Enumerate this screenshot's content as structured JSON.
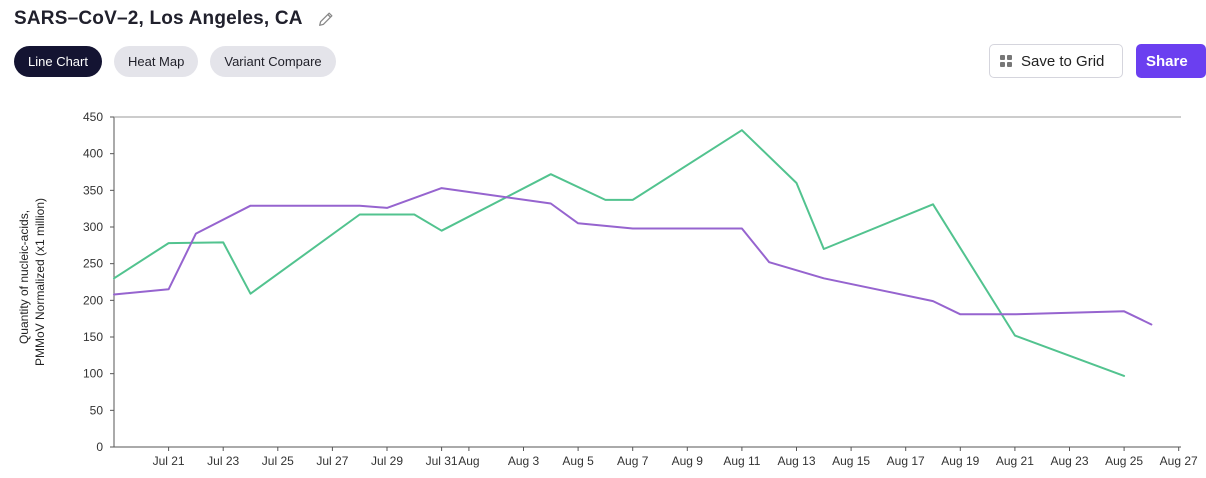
{
  "header": {
    "title": "SARS–CoV–2, Los Angeles, CA"
  },
  "tabs": [
    {
      "label": "Line Chart",
      "active": true
    },
    {
      "label": "Heat Map",
      "active": false
    },
    {
      "label": "Variant Compare",
      "active": false
    }
  ],
  "actions": {
    "save_label": "Save to Grid",
    "share_label": "Share"
  },
  "colors": {
    "series_green": "#52c38f",
    "series_purple": "#9664cf",
    "accent": "#6b3ff0",
    "active_tab": "#141432"
  },
  "icons": {
    "edit": "pencil-icon",
    "grid": "grid-icon"
  },
  "chart_data": {
    "type": "line",
    "ylabel_lines": [
      "Quantity of nucleic-acids,",
      "PMMoV Normalized (x1 million)"
    ],
    "ylim": [
      0,
      450
    ],
    "yticks": [
      0,
      50,
      100,
      150,
      200,
      250,
      300,
      350,
      400,
      450
    ],
    "xticks": [
      "Jul 21",
      "Jul 23",
      "Jul 25",
      "Jul 27",
      "Jul 29",
      "Jul 31",
      "Aug",
      "Aug 3",
      "Aug 5",
      "Aug 7",
      "Aug 9",
      "Aug 11",
      "Aug 13",
      "Aug 15",
      "Aug 17",
      "Aug 19",
      "Aug 21",
      "Aug 23",
      "Aug 25",
      "Aug 27"
    ],
    "grid": false,
    "series": [
      {
        "color": "#52c38f",
        "points": [
          [
            "Jul 19",
            230
          ],
          [
            "Jul 21",
            278
          ],
          [
            "Jul 23",
            279
          ],
          [
            "Jul 24",
            209
          ],
          [
            "Jul 28",
            317
          ],
          [
            "Jul 30",
            317
          ],
          [
            "Jul 31",
            295
          ],
          [
            "Aug 4",
            372
          ],
          [
            "Aug 6",
            337
          ],
          [
            "Aug 7",
            337
          ],
          [
            "Aug 11",
            432
          ],
          [
            "Aug 13",
            360
          ],
          [
            "Aug 14",
            270
          ],
          [
            "Aug 18",
            331
          ],
          [
            "Aug 21",
            152
          ],
          [
            "Aug 25",
            97
          ]
        ]
      },
      {
        "color": "#9664cf",
        "points": [
          [
            "Jul 19",
            208
          ],
          [
            "Jul 21",
            215
          ],
          [
            "Jul 22",
            291
          ],
          [
            "Jul 24",
            329
          ],
          [
            "Jul 28",
            329
          ],
          [
            "Jul 29",
            326
          ],
          [
            "Jul 31",
            353
          ],
          [
            "Aug 4",
            332
          ],
          [
            "Aug 5",
            305
          ],
          [
            "Aug 7",
            298
          ],
          [
            "Aug 11",
            298
          ],
          [
            "Aug 12",
            252
          ],
          [
            "Aug 14",
            230
          ],
          [
            "Aug 18",
            199
          ],
          [
            "Aug 19",
            181
          ],
          [
            "Aug 21",
            181
          ],
          [
            "Aug 25",
            185
          ],
          [
            "Aug 26",
            167
          ]
        ]
      }
    ]
  }
}
